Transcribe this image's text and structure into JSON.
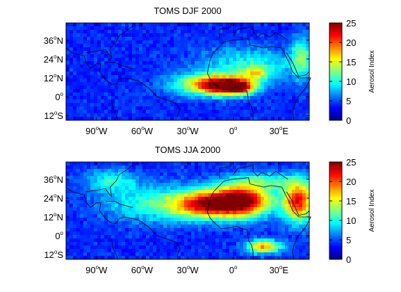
{
  "chart_data": [
    {
      "type": "heatmap",
      "title": "TOMS DJF 2000",
      "xlabel": "",
      "ylabel": "",
      "xlim": [
        -110,
        50
      ],
      "ylim": [
        -15,
        47
      ],
      "x_ticks": [
        {
          "value": -90,
          "num": "90",
          "sup": "o",
          "suffix": "W"
        },
        {
          "value": -60,
          "num": "60",
          "sup": "o",
          "suffix": "W"
        },
        {
          "value": -30,
          "num": "30",
          "sup": "o",
          "suffix": "W"
        },
        {
          "value": 0,
          "num": "0",
          "sup": "o",
          "suffix": ""
        },
        {
          "value": 30,
          "num": "30",
          "sup": "o",
          "suffix": "E"
        }
      ],
      "y_ticks": [
        {
          "value": 36,
          "num": "36",
          "sup": "o",
          "suffix": "N"
        },
        {
          "value": 24,
          "num": "24",
          "sup": "o",
          "suffix": "N"
        },
        {
          "value": 12,
          "num": "12",
          "sup": "o",
          "suffix": "N"
        },
        {
          "value": 0,
          "num": "0",
          "sup": "o",
          "suffix": ""
        },
        {
          "value": -12,
          "num": "12",
          "sup": "o",
          "suffix": "S"
        }
      ],
      "colorbar": {
        "label": "Aerosol Index",
        "range": [
          0,
          25
        ],
        "ticks": [
          "25",
          "20",
          "15",
          "10",
          "5",
          "0"
        ],
        "colormap": "jet"
      },
      "plumes": [
        {
          "lon": -5,
          "lat": 7,
          "value": 18,
          "sx": 12,
          "sy": 4
        },
        {
          "lon": 5,
          "lat": 6,
          "value": 10,
          "sx": 6,
          "sy": 3
        },
        {
          "lon": -20,
          "lat": 8,
          "value": 9,
          "sx": 16,
          "sy": 5
        },
        {
          "lon": 10,
          "lat": 20,
          "value": 6,
          "sx": 22,
          "sy": 8
        },
        {
          "lon": 15,
          "lat": 15,
          "value": 7,
          "sx": 6,
          "sy": 3
        },
        {
          "lon": 45,
          "lat": 25,
          "value": 8,
          "sx": 5,
          "sy": 9
        }
      ]
    },
    {
      "type": "heatmap",
      "title": "TOMS JJA 2000",
      "xlabel": "",
      "ylabel": "",
      "xlim": [
        -110,
        50
      ],
      "ylim": [
        -15,
        47
      ],
      "x_ticks": [
        {
          "value": -90,
          "num": "90",
          "sup": "o",
          "suffix": "W"
        },
        {
          "value": -60,
          "num": "60",
          "sup": "o",
          "suffix": "W"
        },
        {
          "value": -30,
          "num": "30",
          "sup": "o",
          "suffix": "W"
        },
        {
          "value": 0,
          "num": "0",
          "sup": "o",
          "suffix": ""
        },
        {
          "value": 30,
          "num": "30",
          "sup": "o",
          "suffix": "E"
        }
      ],
      "y_ticks": [
        {
          "value": 36,
          "num": "36",
          "sup": "o",
          "suffix": "N"
        },
        {
          "value": 24,
          "num": "24",
          "sup": "o",
          "suffix": "N"
        },
        {
          "value": 12,
          "num": "12",
          "sup": "o",
          "suffix": "N"
        },
        {
          "value": 0,
          "num": "0",
          "sup": "o",
          "suffix": ""
        },
        {
          "value": -12,
          "num": "12",
          "sup": "o",
          "suffix": "S"
        }
      ],
      "colorbar": {
        "label": "Aerosol Index",
        "range": [
          0,
          25
        ],
        "ticks": [
          "25",
          "20",
          "15",
          "10",
          "5",
          "0"
        ],
        "colormap": "jet"
      },
      "plumes": [
        {
          "lon": 5,
          "lat": 22,
          "value": 22,
          "sx": 14,
          "sy": 7
        },
        {
          "lon": -20,
          "lat": 20,
          "value": 14,
          "sx": 14,
          "sy": 6
        },
        {
          "lon": -50,
          "lat": 20,
          "value": 7,
          "sx": 24,
          "sy": 8
        },
        {
          "lon": 43,
          "lat": 22,
          "value": 18,
          "sx": 7,
          "sy": 9
        },
        {
          "lon": 20,
          "lat": -7,
          "value": 14,
          "sx": 8,
          "sy": 3
        },
        {
          "lon": 20,
          "lat": 35,
          "value": 6,
          "sx": 16,
          "sy": 4
        },
        {
          "lon": -80,
          "lat": 35,
          "value": 6,
          "sx": 12,
          "sy": 5
        }
      ]
    }
  ]
}
